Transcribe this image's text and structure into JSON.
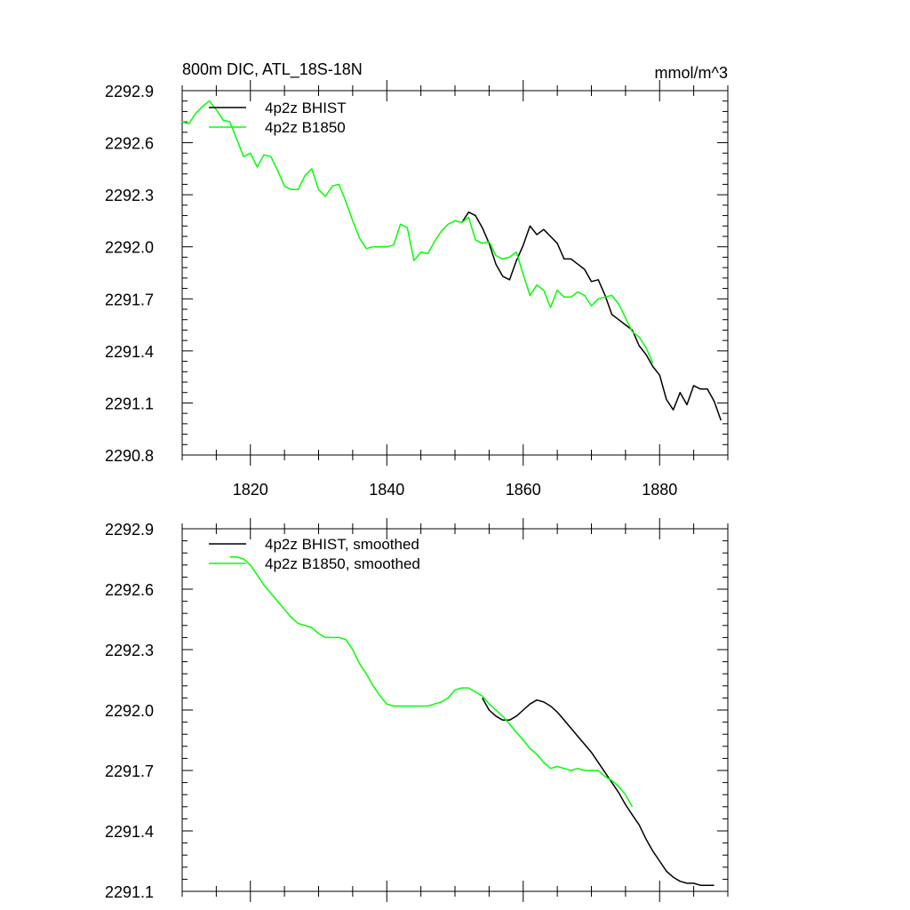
{
  "chart_data": [
    {
      "type": "line",
      "title_left": "800m DIC, ATL_18S-18N",
      "title_right": "mmol/m^3",
      "xlabel": "",
      "ylabel": "",
      "xlim": [
        1810,
        1890
      ],
      "ylim": [
        2290.8,
        2292.9
      ],
      "xticks": [
        1820,
        1840,
        1860,
        1880
      ],
      "xtick_labels": [
        "1820",
        "1840",
        "1860",
        "1880"
      ],
      "yticks": [
        2290.8,
        2291.1,
        2291.4,
        2291.7,
        2292.0,
        2292.3,
        2292.6,
        2292.9
      ],
      "ytick_labels": [
        "2290.8",
        "2291.1",
        "2291.4",
        "2291.7",
        "2292.0",
        "2292.3",
        "2292.6",
        "2292.9"
      ],
      "legend": "top-left",
      "series": [
        {
          "name": "4p2z BHIST",
          "color": "#000000",
          "x": [
            1851,
            1852,
            1853,
            1854,
            1855,
            1856,
            1857,
            1858,
            1859,
            1860,
            1861,
            1862,
            1863,
            1864,
            1865,
            1866,
            1867,
            1868,
            1869,
            1870,
            1871,
            1872,
            1873,
            1874,
            1875,
            1876,
            1877,
            1878,
            1879,
            1880,
            1881,
            1882,
            1883,
            1884,
            1885,
            1886,
            1887,
            1888,
            1889
          ],
          "values": [
            2292.14,
            2292.2,
            2292.18,
            2292.11,
            2292.02,
            2291.9,
            2291.83,
            2291.81,
            2291.92,
            2292.01,
            2292.12,
            2292.07,
            2292.1,
            2292.06,
            2292.02,
            2291.93,
            2291.93,
            2291.9,
            2291.87,
            2291.8,
            2291.81,
            2291.72,
            2291.61,
            2291.58,
            2291.55,
            2291.52,
            2291.43,
            2291.38,
            2291.31,
            2291.26,
            2291.12,
            2291.06,
            2291.16,
            2291.09,
            2291.2,
            2291.18,
            2291.18,
            2291.11,
            2291.0
          ]
        },
        {
          "name": "4p2z B1850",
          "color": "#00ff00",
          "x": [
            1810,
            1811,
            1812,
            1813,
            1814,
            1815,
            1816,
            1817,
            1818,
            1819,
            1820,
            1821,
            1822,
            1823,
            1824,
            1825,
            1826,
            1827,
            1828,
            1829,
            1830,
            1831,
            1832,
            1833,
            1834,
            1835,
            1836,
            1837,
            1838,
            1839,
            1840,
            1841,
            1842,
            1843,
            1844,
            1845,
            1846,
            1847,
            1848,
            1849,
            1850,
            1851,
            1852,
            1853,
            1854,
            1855,
            1856,
            1857,
            1858,
            1859,
            1860,
            1861,
            1862,
            1863,
            1864,
            1865,
            1866,
            1867,
            1868,
            1869,
            1870,
            1871,
            1872,
            1873,
            1874,
            1875,
            1876,
            1877,
            1878,
            1879
          ],
          "values": [
            2292.72,
            2292.71,
            2292.77,
            2292.81,
            2292.84,
            2292.79,
            2292.73,
            2292.72,
            2292.62,
            2292.52,
            2292.54,
            2292.46,
            2292.53,
            2292.52,
            2292.44,
            2292.35,
            2292.33,
            2292.33,
            2292.41,
            2292.45,
            2292.33,
            2292.29,
            2292.35,
            2292.36,
            2292.26,
            2292.15,
            2292.05,
            2291.99,
            2292.0,
            2292.0,
            2292.0,
            2292.01,
            2292.13,
            2292.11,
            2291.92,
            2291.97,
            2291.96,
            2292.03,
            2292.09,
            2292.13,
            2292.15,
            2292.14,
            2292.17,
            2292.04,
            2292.02,
            2292.03,
            2291.95,
            2291.93,
            2291.94,
            2291.97,
            2291.84,
            2291.72,
            2291.78,
            2291.75,
            2291.65,
            2291.75,
            2291.71,
            2291.71,
            2291.74,
            2291.72,
            2291.66,
            2291.7,
            2291.71,
            2291.72,
            2291.67,
            2291.59,
            2291.51,
            2291.48,
            2291.42,
            2291.33
          ]
        }
      ]
    },
    {
      "type": "line",
      "xlabel": "",
      "ylabel": "",
      "xlim": [
        1810,
        1890
      ],
      "ylim": [
        2291.1,
        2292.9
      ],
      "xticks": [
        1820,
        1840,
        1860,
        1880
      ],
      "xtick_labels": [],
      "yticks": [
        2291.1,
        2291.4,
        2291.7,
        2292.0,
        2292.3,
        2292.6,
        2292.9
      ],
      "ytick_labels": [
        "2291.1",
        "2291.4",
        "2291.7",
        "2292.0",
        "2292.3",
        "2292.6",
        "2292.9"
      ],
      "legend": "top-left",
      "series": [
        {
          "name": "4p2z BHIST, smoothed",
          "color": "#000000",
          "x": [
            1854,
            1855,
            1856,
            1857,
            1858,
            1859,
            1860,
            1861,
            1862,
            1863,
            1864,
            1865,
            1866,
            1867,
            1868,
            1869,
            1870,
            1871,
            1872,
            1873,
            1874,
            1875,
            1876,
            1877,
            1878,
            1879,
            1880,
            1881,
            1882,
            1883,
            1884,
            1885,
            1886,
            1887,
            1888
          ],
          "values": [
            2292.06,
            2292.0,
            2291.97,
            2291.95,
            2291.95,
            2291.97,
            2292.0,
            2292.03,
            2292.05,
            2292.04,
            2292.02,
            2291.99,
            2291.95,
            2291.91,
            2291.87,
            2291.83,
            2291.79,
            2291.74,
            2291.69,
            2291.64,
            2291.59,
            2291.53,
            2291.48,
            2291.43,
            2291.36,
            2291.3,
            2291.25,
            2291.2,
            2291.17,
            2291.15,
            2291.14,
            2291.14,
            2291.13,
            2291.13,
            2291.13
          ]
        },
        {
          "name": "4p2z B1850, smoothed",
          "color": "#00ff00",
          "x": [
            1817,
            1818,
            1819,
            1820,
            1821,
            1822,
            1823,
            1824,
            1825,
            1826,
            1827,
            1828,
            1829,
            1830,
            1831,
            1832,
            1833,
            1834,
            1835,
            1836,
            1837,
            1838,
            1839,
            1840,
            1841,
            1842,
            1843,
            1844,
            1845,
            1846,
            1847,
            1848,
            1849,
            1850,
            1851,
            1852,
            1853,
            1854,
            1855,
            1856,
            1857,
            1858,
            1859,
            1860,
            1861,
            1862,
            1863,
            1864,
            1865,
            1866,
            1867,
            1868,
            1869,
            1870,
            1871,
            1872,
            1873,
            1874,
            1875,
            1876
          ],
          "values": [
            2292.76,
            2292.76,
            2292.75,
            2292.72,
            2292.67,
            2292.62,
            2292.58,
            2292.54,
            2292.5,
            2292.46,
            2292.43,
            2292.42,
            2292.41,
            2292.38,
            2292.36,
            2292.36,
            2292.36,
            2292.35,
            2292.3,
            2292.23,
            2292.18,
            2292.12,
            2292.07,
            2292.03,
            2292.02,
            2292.02,
            2292.02,
            2292.02,
            2292.02,
            2292.02,
            2292.03,
            2292.04,
            2292.06,
            2292.1,
            2292.11,
            2292.11,
            2292.09,
            2292.07,
            2292.03,
            2292.0,
            2291.97,
            2291.93,
            2291.89,
            2291.85,
            2291.81,
            2291.78,
            2291.74,
            2291.71,
            2291.72,
            2291.71,
            2291.7,
            2291.71,
            2291.7,
            2291.7,
            2291.7,
            2291.67,
            2291.65,
            2291.62,
            2291.58,
            2291.52
          ]
        }
      ]
    }
  ]
}
